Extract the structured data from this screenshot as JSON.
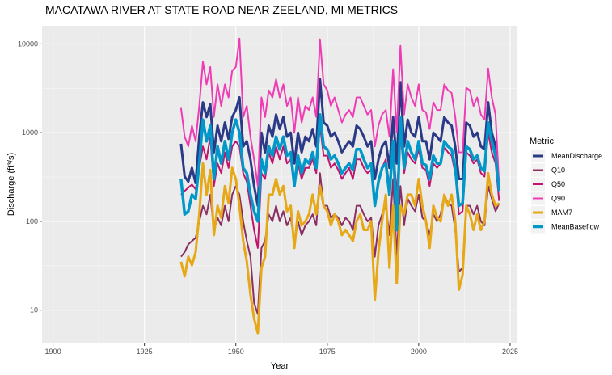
{
  "chart_data": {
    "type": "line",
    "title": "MACATAWA RIVER AT STATE ROAD NEAR ZEELAND, MI  METRICS",
    "xlabel": "Year",
    "ylabel": "Discharge (ft³/s)",
    "y_scale": "log",
    "xlim": [
      1897,
      2027
    ],
    "ylim": [
      4.2,
      16000
    ],
    "x_ticks": [
      1900,
      1925,
      1950,
      1975,
      2000,
      2025
    ],
    "y_ticks": [
      10,
      100,
      1000,
      10000
    ],
    "grid": true,
    "background": "#ebebeb",
    "legend": {
      "title": "Metric",
      "position": "right"
    },
    "series": [
      {
        "name": "MeanDischarge",
        "color": "#2b3a87",
        "width": 3,
        "x": [
          1935,
          1936,
          1937,
          1938,
          1939,
          1940,
          1941,
          1942,
          1943,
          1944,
          1945,
          1946,
          1947,
          1948,
          1949,
          1950,
          1951,
          1952,
          1953,
          1954,
          1955,
          1956,
          1957,
          1958,
          1959,
          1960,
          1961,
          1962,
          1963,
          1964,
          1965,
          1966,
          1967,
          1968,
          1969,
          1970,
          1971,
          1972,
          1973,
          1974,
          1975,
          1976,
          1977,
          1978,
          1979,
          1980,
          1981,
          1982,
          1983,
          1984,
          1985,
          1986,
          1987,
          1988,
          1989,
          1990,
          1991,
          1992,
          1993,
          1994,
          1995,
          1996,
          1997,
          1998,
          1999,
          2000,
          2001,
          2002,
          2003,
          2004,
          2005,
          2006,
          2007,
          2008,
          2009,
          2010,
          2011,
          2012,
          2013,
          2014,
          2015,
          2016,
          2017,
          2018,
          2019,
          2020,
          2021,
          2022
        ],
        "y": [
          750,
          320,
          280,
          400,
          270,
          900,
          2200,
          1500,
          2100,
          600,
          1200,
          800,
          1300,
          850,
          1500,
          1800,
          2500,
          700,
          800,
          500,
          250,
          150,
          1000,
          600,
          1200,
          900,
          1600,
          1100,
          1500,
          900,
          1000,
          450,
          1000,
          600,
          900,
          800,
          1100,
          700,
          4000,
          1300,
          1200,
          900,
          1000,
          800,
          600,
          700,
          800,
          700,
          1200,
          1100,
          900,
          700,
          800,
          300,
          500,
          700,
          800,
          400,
          1500,
          450,
          3700,
          700,
          1400,
          1000,
          900,
          1500,
          800,
          800,
          500,
          1000,
          900,
          800,
          1500,
          1300,
          1200,
          700,
          300,
          300,
          1300,
          1200,
          900,
          1000,
          700,
          650,
          2200,
          1000,
          700,
          230
        ]
      },
      {
        "name": "Q10",
        "color": "#8b2e62",
        "width": 2,
        "x": [
          1935,
          1936,
          1937,
          1938,
          1939,
          1940,
          1941,
          1942,
          1943,
          1944,
          1945,
          1946,
          1947,
          1948,
          1949,
          1950,
          1951,
          1952,
          1953,
          1954,
          1955,
          1956,
          1957,
          1958,
          1959,
          1960,
          1961,
          1962,
          1963,
          1964,
          1965,
          1966,
          1967,
          1968,
          1969,
          1970,
          1971,
          1972,
          1973,
          1974,
          1975,
          1976,
          1977,
          1978,
          1979,
          1980,
          1981,
          1982,
          1983,
          1984,
          1985,
          1986,
          1987,
          1988,
          1989,
          1990,
          1991,
          1992,
          1993,
          1994,
          1995,
          1996,
          1997,
          1998,
          1999,
          2000,
          2001,
          2002,
          2003,
          2004,
          2005,
          2006,
          2007,
          2008,
          2009,
          2010,
          2011,
          2012,
          2013,
          2014,
          2015,
          2016,
          2017,
          2018,
          2019,
          2020,
          2021,
          2022
        ],
        "y": [
          40,
          45,
          55,
          60,
          65,
          100,
          150,
          120,
          200,
          80,
          110,
          90,
          150,
          100,
          200,
          250,
          200,
          100,
          60,
          40,
          12,
          9,
          50,
          60,
          120,
          100,
          150,
          100,
          130,
          90,
          110,
          60,
          100,
          70,
          90,
          100,
          120,
          90,
          350,
          150,
          150,
          110,
          120,
          110,
          90,
          110,
          100,
          80,
          150,
          150,
          120,
          100,
          110,
          40,
          90,
          120,
          150,
          70,
          300,
          40,
          250,
          90,
          180,
          150,
          130,
          200,
          110,
          100,
          70,
          120,
          100,
          120,
          200,
          160,
          150,
          80,
          27,
          30,
          150,
          150,
          120,
          150,
          100,
          90,
          250,
          180,
          130,
          160
        ]
      },
      {
        "name": "Q50",
        "color": "#c0146f",
        "width": 2,
        "x": [
          1935,
          1936,
          1937,
          1938,
          1939,
          1940,
          1941,
          1942,
          1943,
          1944,
          1945,
          1946,
          1947,
          1948,
          1949,
          1950,
          1951,
          1952,
          1953,
          1954,
          1955,
          1956,
          1957,
          1958,
          1959,
          1960,
          1961,
          1962,
          1963,
          1964,
          1965,
          1966,
          1967,
          1968,
          1969,
          1970,
          1971,
          1972,
          1973,
          1974,
          1975,
          1976,
          1977,
          1978,
          1979,
          1980,
          1981,
          1982,
          1983,
          1984,
          1985,
          1986,
          1987,
          1988,
          1989,
          1990,
          1991,
          1992,
          1993,
          1994,
          1995,
          1996,
          1997,
          1998,
          1999,
          2000,
          2001,
          2002,
          2003,
          2004,
          2005,
          2006,
          2007,
          2008,
          2009,
          2010,
          2011,
          2012,
          2013,
          2014,
          2015,
          2016,
          2017,
          2018,
          2019,
          2020,
          2021,
          2022
        ],
        "y": [
          200,
          220,
          240,
          260,
          230,
          400,
          700,
          500,
          900,
          250,
          450,
          350,
          600,
          400,
          700,
          800,
          700,
          350,
          280,
          150,
          80,
          50,
          350,
          300,
          600,
          450,
          700,
          500,
          700,
          450,
          500,
          250,
          450,
          300,
          400,
          400,
          500,
          350,
          1200,
          550,
          550,
          400,
          450,
          380,
          300,
          350,
          400,
          300,
          500,
          500,
          400,
          350,
          380,
          150,
          300,
          400,
          500,
          250,
          800,
          200,
          1000,
          350,
          600,
          500,
          450,
          650,
          400,
          380,
          250,
          450,
          400,
          450,
          700,
          600,
          550,
          350,
          120,
          130,
          600,
          550,
          450,
          500,
          350,
          320,
          1000,
          600,
          450,
          170
        ]
      },
      {
        "name": "Q90",
        "color": "#f03cb4",
        "width": 2,
        "x": [
          1935,
          1936,
          1937,
          1938,
          1939,
          1940,
          1941,
          1942,
          1943,
          1944,
          1945,
          1946,
          1947,
          1948,
          1949,
          1950,
          1951,
          1952,
          1953,
          1954,
          1955,
          1956,
          1957,
          1958,
          1959,
          1960,
          1961,
          1962,
          1963,
          1964,
          1965,
          1966,
          1967,
          1968,
          1969,
          1970,
          1971,
          1972,
          1973,
          1974,
          1975,
          1976,
          1977,
          1978,
          1979,
          1980,
          1981,
          1982,
          1983,
          1984,
          1985,
          1986,
          1987,
          1988,
          1989,
          1990,
          1991,
          1992,
          1993,
          1994,
          1995,
          1996,
          1997,
          1998,
          1999,
          2000,
          2001,
          2002,
          2003,
          2004,
          2005,
          2006,
          2007,
          2008,
          2009,
          2010,
          2011,
          2012,
          2013,
          2014,
          2015,
          2016,
          2017,
          2018,
          2019,
          2020,
          2021,
          2022
        ],
        "y": [
          1900,
          900,
          700,
          1200,
          800,
          2000,
          6300,
          3500,
          5500,
          1500,
          3500,
          2000,
          3500,
          2500,
          5000,
          5500,
          11500,
          1500,
          2000,
          900,
          500,
          250,
          2500,
          1500,
          3000,
          2500,
          4000,
          2500,
          3500,
          2000,
          2500,
          1000,
          2500,
          1300,
          2000,
          1800,
          2500,
          1500,
          11300,
          3500,
          3000,
          2000,
          2500,
          1800,
          1300,
          1600,
          1800,
          1500,
          2500,
          2500,
          2000,
          1600,
          1800,
          700,
          1200,
          1600,
          1800,
          900,
          5200,
          1000,
          9500,
          1600,
          3500,
          2500,
          2000,
          3500,
          1800,
          1700,
          1100,
          2200,
          1800,
          1800,
          3500,
          3000,
          2800,
          1500,
          600,
          600,
          3200,
          3000,
          2000,
          2500,
          1600,
          1400,
          5300,
          2500,
          1600,
          250
        ]
      },
      {
        "name": "MAM7",
        "color": "#e6a817",
        "width": 3,
        "x": [
          1935,
          1936,
          1937,
          1938,
          1939,
          1940,
          1941,
          1942,
          1943,
          1944,
          1945,
          1946,
          1947,
          1948,
          1949,
          1950,
          1951,
          1952,
          1953,
          1954,
          1955,
          1956,
          1957,
          1958,
          1959,
          1960,
          1961,
          1962,
          1963,
          1964,
          1965,
          1966,
          1967,
          1968,
          1969,
          1970,
          1971,
          1972,
          1973,
          1974,
          1975,
          1976,
          1977,
          1978,
          1979,
          1980,
          1981,
          1982,
          1983,
          1984,
          1985,
          1986,
          1987,
          1988,
          1989,
          1990,
          1991,
          1992,
          1993,
          1994,
          1995,
          1996,
          1997,
          1998,
          1999,
          2000,
          2001,
          2002,
          2003,
          2004,
          2005,
          2006,
          2007,
          2008,
          2009,
          2010,
          2011,
          2012,
          2013,
          2014,
          2015,
          2016,
          2017,
          2018,
          2019,
          2020,
          2021,
          2022
        ],
        "y": [
          35,
          24,
          40,
          32,
          45,
          120,
          450,
          200,
          380,
          70,
          150,
          110,
          250,
          160,
          400,
          300,
          150,
          60,
          35,
          15,
          8,
          5.5,
          30,
          40,
          200,
          200,
          300,
          200,
          250,
          130,
          150,
          50,
          130,
          90,
          100,
          120,
          200,
          120,
          250,
          150,
          130,
          90,
          120,
          100,
          70,
          80,
          70,
          60,
          100,
          120,
          80,
          80,
          100,
          13,
          45,
          100,
          200,
          30,
          150,
          20,
          150,
          120,
          200,
          200,
          150,
          300,
          150,
          100,
          50,
          150,
          110,
          100,
          200,
          150,
          200,
          100,
          17,
          25,
          150,
          120,
          80,
          120,
          80,
          100,
          350,
          200,
          150,
          160
        ]
      },
      {
        "name": "MeanBaseflow",
        "color": "#0098c9",
        "width": 3.5,
        "x": [
          1935,
          1936,
          1937,
          1938,
          1939,
          1940,
          1941,
          1942,
          1943,
          1944,
          1945,
          1946,
          1947,
          1948,
          1949,
          1950,
          1951,
          1952,
          1953,
          1954,
          1955,
          1956,
          1957,
          1958,
          1959,
          1960,
          1961,
          1962,
          1963,
          1964,
          1965,
          1966,
          1967,
          1968,
          1969,
          1970,
          1971,
          1972,
          1973,
          1974,
          1975,
          1976,
          1977,
          1978,
          1979,
          1980,
          1981,
          1982,
          1983,
          1984,
          1985,
          1986,
          1987,
          1988,
          1989,
          1990,
          1991,
          1992,
          1993,
          1994,
          1995,
          1996,
          1997,
          1998,
          1999,
          2000,
          2001,
          2002,
          2003,
          2004,
          2005,
          2006,
          2007,
          2008,
          2009,
          2010,
          2011,
          2012,
          2013,
          2014,
          2015,
          2016,
          2017,
          2018,
          2019,
          2020,
          2021,
          2022
        ],
        "y": [
          300,
          120,
          130,
          200,
          180,
          450,
          1400,
          800,
          1200,
          300,
          700,
          450,
          800,
          500,
          1000,
          1400,
          1000,
          400,
          350,
          200,
          130,
          100,
          500,
          350,
          700,
          550,
          900,
          650,
          900,
          550,
          600,
          250,
          550,
          350,
          500,
          450,
          600,
          400,
          1600,
          700,
          650,
          500,
          550,
          450,
          350,
          400,
          450,
          380,
          650,
          650,
          500,
          400,
          450,
          150,
          280,
          400,
          450,
          200,
          800,
          80,
          1500,
          400,
          800,
          600,
          500,
          800,
          450,
          430,
          300,
          550,
          450,
          450,
          800,
          700,
          650,
          400,
          150,
          160,
          700,
          650,
          500,
          550,
          400,
          370,
          1300,
          800,
          550,
          220
        ]
      }
    ]
  }
}
